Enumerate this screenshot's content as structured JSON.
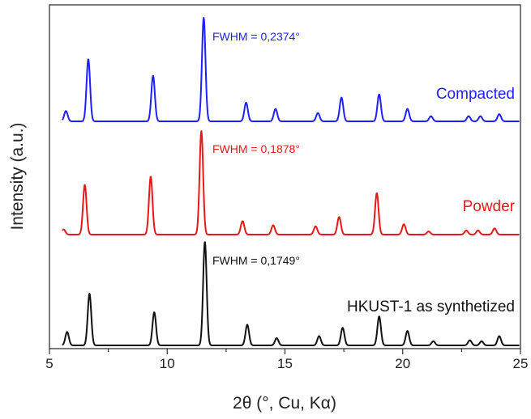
{
  "chart_data": {
    "type": "line",
    "xlabel": "2θ (°, Cu, Kα)",
    "ylabel": "Intensity (a.u.)",
    "xlim": [
      5,
      25
    ],
    "x_ticks": [
      "5",
      "10",
      "15",
      "20",
      "25"
    ],
    "grid": false,
    "stacked_offset": true,
    "series": [
      {
        "name": "Compacted",
        "color": "#1f1fff",
        "annotation": "FWHM = 0,2374°",
        "peaks": [
          {
            "x": 5.7,
            "y": 0.1
          },
          {
            "x": 6.65,
            "y": 0.6
          },
          {
            "x": 9.4,
            "y": 0.44
          },
          {
            "x": 11.55,
            "y": 1.0
          },
          {
            "x": 13.35,
            "y": 0.18
          },
          {
            "x": 14.6,
            "y": 0.12
          },
          {
            "x": 16.4,
            "y": 0.08
          },
          {
            "x": 17.4,
            "y": 0.23
          },
          {
            "x": 19.0,
            "y": 0.26
          },
          {
            "x": 20.2,
            "y": 0.12
          },
          {
            "x": 21.2,
            "y": 0.05
          },
          {
            "x": 22.8,
            "y": 0.05
          },
          {
            "x": 23.3,
            "y": 0.05
          },
          {
            "x": 24.1,
            "y": 0.07
          }
        ]
      },
      {
        "name": "Powder",
        "color": "#e81818",
        "annotation": "FWHM = 0,1878°",
        "peaks": [
          {
            "x": 5.6,
            "y": 0.05
          },
          {
            "x": 6.5,
            "y": 0.48
          },
          {
            "x": 9.3,
            "y": 0.56
          },
          {
            "x": 11.45,
            "y": 1.0
          },
          {
            "x": 13.2,
            "y": 0.13
          },
          {
            "x": 14.5,
            "y": 0.09
          },
          {
            "x": 16.3,
            "y": 0.08
          },
          {
            "x": 17.3,
            "y": 0.17
          },
          {
            "x": 18.9,
            "y": 0.4
          },
          {
            "x": 20.05,
            "y": 0.1
          },
          {
            "x": 21.1,
            "y": 0.03
          },
          {
            "x": 22.7,
            "y": 0.04
          },
          {
            "x": 23.2,
            "y": 0.04
          },
          {
            "x": 23.9,
            "y": 0.06
          }
        ]
      },
      {
        "name": "HKUST-1 as synthetized",
        "color": "#111111",
        "annotation": "FWHM = 0,1749°",
        "peaks": [
          {
            "x": 5.75,
            "y": 0.13
          },
          {
            "x": 6.7,
            "y": 0.5
          },
          {
            "x": 9.45,
            "y": 0.32
          },
          {
            "x": 11.6,
            "y": 1.0
          },
          {
            "x": 13.4,
            "y": 0.2
          },
          {
            "x": 14.65,
            "y": 0.07
          },
          {
            "x": 16.45,
            "y": 0.09
          },
          {
            "x": 17.45,
            "y": 0.17
          },
          {
            "x": 19.0,
            "y": 0.28
          },
          {
            "x": 20.2,
            "y": 0.14
          },
          {
            "x": 21.3,
            "y": 0.04
          },
          {
            "x": 22.85,
            "y": 0.05
          },
          {
            "x": 23.35,
            "y": 0.04
          },
          {
            "x": 24.1,
            "y": 0.09
          }
        ]
      }
    ]
  }
}
